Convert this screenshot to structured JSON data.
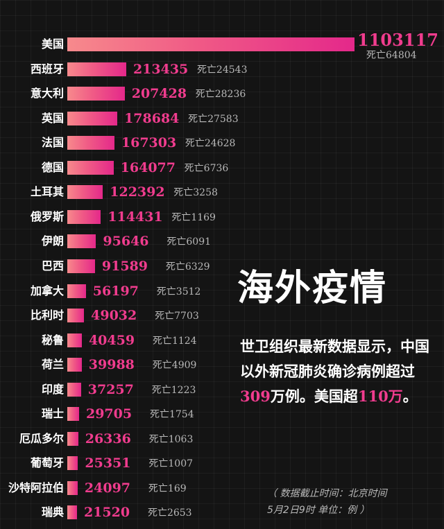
{
  "chart_data": {
    "type": "bar",
    "orientation": "horizontal",
    "death_prefix": "死亡",
    "categories": [
      "美国",
      "西班牙",
      "意大利",
      "英国",
      "法国",
      "德国",
      "土耳其",
      "俄罗斯",
      "伊朗",
      "巴西",
      "加拿大",
      "比利时",
      "秘鲁",
      "荷兰",
      "印度",
      "瑞士",
      "厄瓜多尔",
      "葡萄牙",
      "沙特阿拉伯",
      "瑞典"
    ],
    "values": [
      1103117,
      213435,
      207428,
      178684,
      167303,
      164077,
      122392,
      114431,
      95646,
      91589,
      56197,
      49032,
      40459,
      39988,
      37257,
      29705,
      26336,
      25351,
      24097,
      21520
    ],
    "deaths": [
      64804,
      24543,
      28236,
      27583,
      24628,
      6736,
      3258,
      1169,
      6091,
      6329,
      3512,
      7703,
      1124,
      4909,
      1223,
      1754,
      1063,
      1007,
      169,
      2653
    ],
    "xlim": [
      0,
      1103117
    ],
    "grid": true
  },
  "panel": {
    "headline": "海外疫情",
    "desc_part1": "世卫组织最新数据显示，中国以外新冠肺炎确诊病例超过",
    "desc_num1": "309",
    "desc_part2": "万例。美国超",
    "desc_num2": "110万",
    "desc_part3": "。",
    "note_line1": "（ 数据截止时间：北京时间",
    "note_line2": "5月2日9时  单位：例 ）"
  },
  "colors": {
    "background": "#141414",
    "accent": "#f03c8e",
    "bar_start": "#f78a8c",
    "bar_end": "#e4288a",
    "text": "#ffffff",
    "muted": "#b8b8b8"
  }
}
